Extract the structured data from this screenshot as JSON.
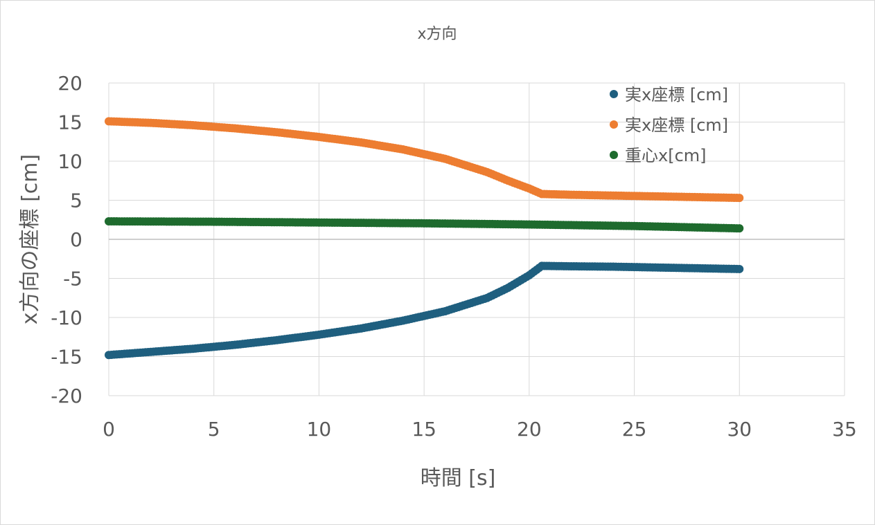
{
  "chart_data": {
    "type": "scatter",
    "title": "x方向",
    "xlabel": "時間 [s]",
    "ylabel": "x方向の座標 [cm]",
    "xlim": [
      0,
      35
    ],
    "ylim": [
      -20,
      20
    ],
    "xticks": [
      0,
      5,
      10,
      15,
      20,
      25,
      30,
      35
    ],
    "yticks": [
      -20,
      -15,
      -10,
      -5,
      0,
      5,
      10,
      15,
      20
    ],
    "xtick_labels": [
      "0",
      "5",
      "10",
      "15",
      "20",
      "25",
      "30",
      "35"
    ],
    "ytick_labels": [
      "-20",
      "-15",
      "-10",
      "-5",
      "0",
      "5",
      "10",
      "15",
      "20"
    ],
    "grid": true,
    "legend_position": "top-right",
    "series": [
      {
        "name": "実x座標 [cm]",
        "color": "#1f5f7f",
        "x": [
          0,
          2,
          4,
          6,
          8,
          10,
          12,
          14,
          16,
          18,
          19,
          20,
          20.6,
          22,
          24,
          26,
          28,
          30
        ],
        "y": [
          -14.8,
          -14.4,
          -14.0,
          -13.5,
          -12.9,
          -12.2,
          -11.4,
          -10.4,
          -9.2,
          -7.5,
          -6.2,
          -4.6,
          -3.4,
          -3.45,
          -3.5,
          -3.6,
          -3.7,
          -3.8
        ]
      },
      {
        "name": "実x座標 [cm]",
        "color": "#ed7d31",
        "x": [
          0,
          2,
          4,
          6,
          8,
          10,
          12,
          14,
          16,
          18,
          19,
          20,
          20.6,
          22,
          24,
          26,
          28,
          30
        ],
        "y": [
          15.1,
          14.9,
          14.6,
          14.2,
          13.7,
          13.1,
          12.4,
          11.5,
          10.3,
          8.6,
          7.5,
          6.5,
          5.8,
          5.7,
          5.6,
          5.5,
          5.4,
          5.3
        ]
      },
      {
        "name": "重心x[cm]",
        "color": "#1e6b2e",
        "x": [
          0,
          5,
          10,
          15,
          20,
          25,
          30
        ],
        "y": [
          2.3,
          2.25,
          2.15,
          2.05,
          1.9,
          1.7,
          1.4
        ]
      }
    ]
  }
}
